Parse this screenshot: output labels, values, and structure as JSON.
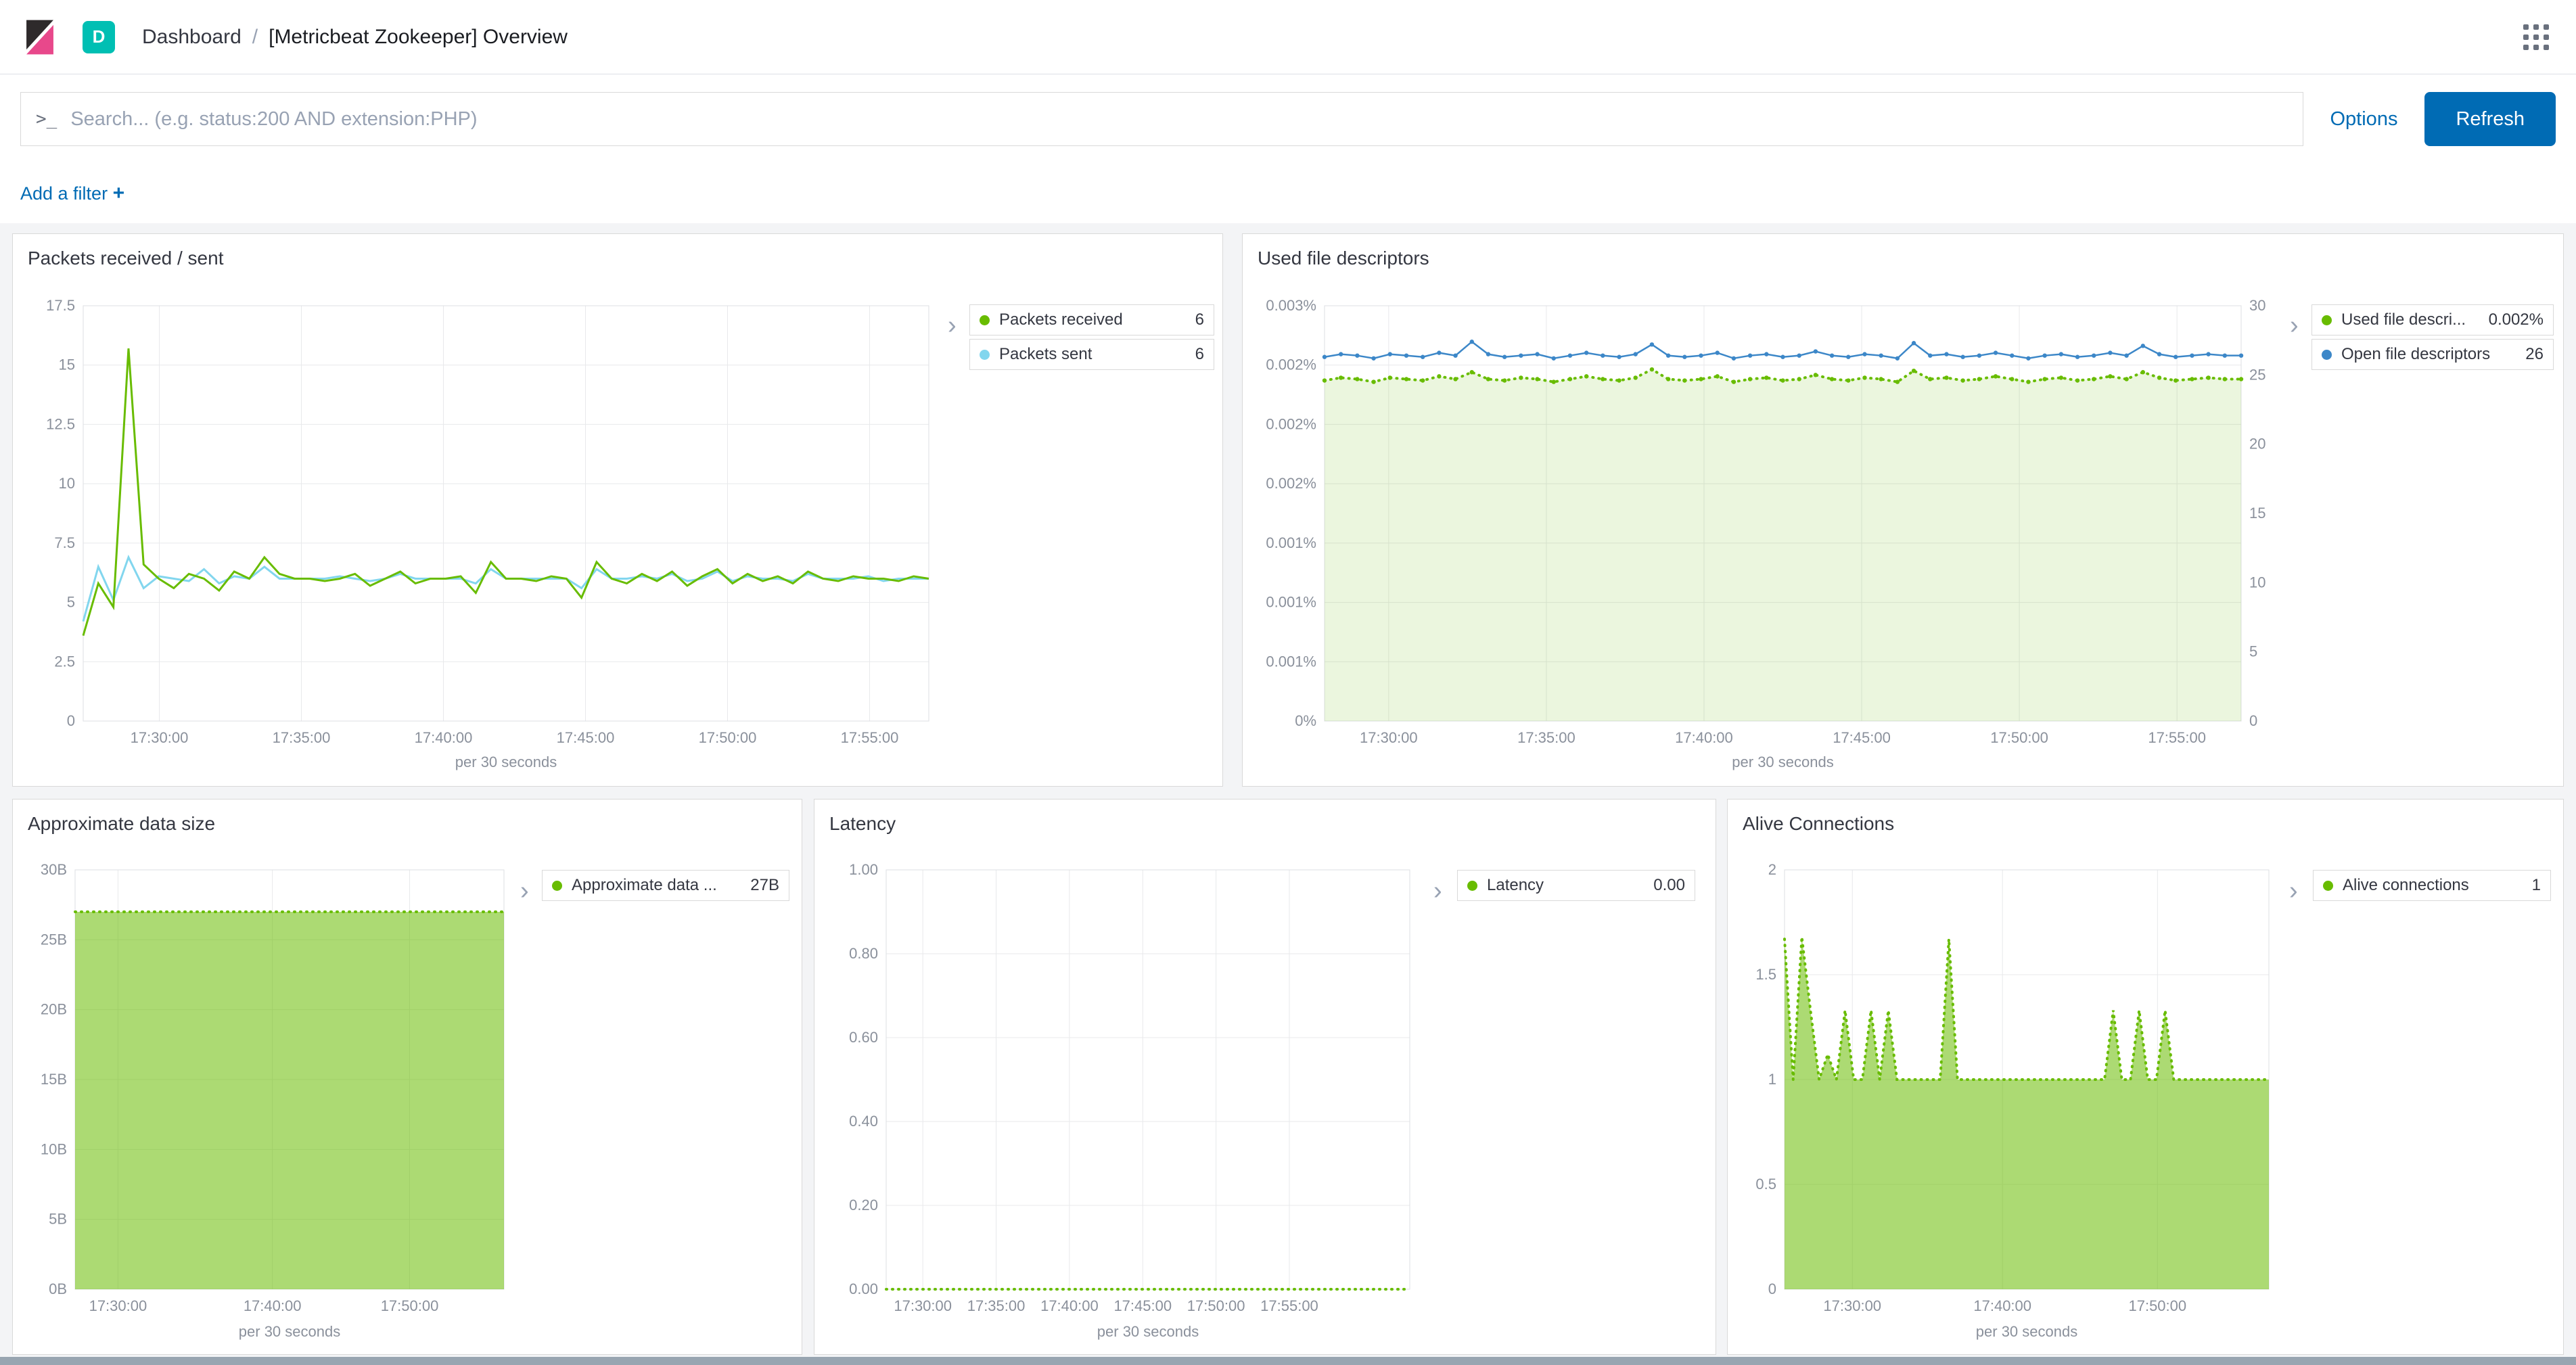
{
  "header": {
    "space_badge": "D",
    "breadcrumb": {
      "section": "Dashboard",
      "separator": "/",
      "page": "[Metricbeat Zookeeper] Overview"
    }
  },
  "search": {
    "prompt": ">_",
    "placeholder": "Search... (e.g. status:200 AND extension:PHP)",
    "options_label": "Options",
    "refresh_label": "Refresh"
  },
  "filter_bar": {
    "label": "Add a filter",
    "plus": "+"
  },
  "ui": {
    "legend_toggle": "›"
  },
  "colors": {
    "primary_blue": "#006BB4",
    "space_teal": "#00BFB3",
    "series_green": "#68BC00",
    "series_cyan": "#82D6EE",
    "series_blue": "#3C87C8"
  },
  "panels": [
    {
      "title": "Packets received / sent",
      "legend": [
        {
          "label": "Packets received",
          "value": "6",
          "color": "#68BC00"
        },
        {
          "label": "Packets sent",
          "value": "6",
          "color": "#82D6EE"
        }
      ],
      "chart": {
        "yticks": [
          "0",
          "2.5",
          "5",
          "7.5",
          "10",
          "12.5",
          "15",
          "17.5"
        ],
        "xticks": {
          "labels": [
            "17:30:00",
            "17:35:00",
            "17:40:00",
            "17:45:00",
            "17:50:00",
            "17:55:00"
          ],
          "fracs": [
            0.09,
            0.258,
            0.426,
            0.594,
            0.762,
            0.93
          ]
        },
        "xlabel": "per 30 seconds",
        "series": [
          {
            "name": "Packets received",
            "color": "#68BC00",
            "type": "line",
            "width": 3,
            "ylim": [
              0,
              17.5
            ],
            "values": [
              3.6,
              5.8,
              4.8,
              15.7,
              6.6,
              6,
              5.6,
              6.2,
              6,
              5.5,
              6.3,
              6,
              6.9,
              6.2,
              6,
              6,
              5.9,
              6,
              6.2,
              5.7,
              6,
              6.3,
              5.8,
              6,
              6,
              6.1,
              5.4,
              6.7,
              6,
              6,
              5.9,
              6.1,
              6,
              5.2,
              6.7,
              6,
              5.8,
              6.2,
              5.9,
              6.3,
              5.7,
              6.1,
              6.4,
              5.8,
              6.2,
              5.9,
              6.1,
              5.8,
              6.3,
              6,
              5.9,
              6.1,
              6,
              6,
              5.9,
              6.1,
              6
            ]
          },
          {
            "name": "Packets sent",
            "color": "#82D6EE",
            "type": "line",
            "width": 3,
            "ylim": [
              0,
              17.5
            ],
            "values": [
              4.2,
              6.5,
              5.1,
              6.9,
              5.6,
              6.1,
              6,
              5.9,
              6.4,
              5.8,
              6.1,
              6,
              6.5,
              6,
              6,
              6,
              6,
              6.1,
              6,
              5.9,
              6,
              6.2,
              6,
              6,
              6,
              6,
              5.8,
              6.4,
              6,
              6,
              6,
              6,
              6,
              5.6,
              6.4,
              6,
              6,
              6.1,
              6,
              6.2,
              5.9,
              6,
              6.3,
              5.9,
              6.1,
              6,
              6,
              5.9,
              6.2,
              6,
              6,
              6,
              6.1,
              5.9,
              6,
              6,
              6
            ]
          }
        ]
      }
    },
    {
      "title": "Used file descriptors",
      "legend": [
        {
          "label": "Used file descri...",
          "value": "0.002%",
          "color": "#68BC00"
        },
        {
          "label": "Open file descriptors",
          "value": "26",
          "color": "#3C87C8"
        }
      ],
      "chart": {
        "yticks": [
          "0%",
          "0.001%",
          "0.001%",
          "0.001%",
          "0.002%",
          "0.002%",
          "0.002%",
          "0.003%"
        ],
        "yticks_right": [
          "0",
          "5",
          "10",
          "15",
          "20",
          "25",
          "30"
        ],
        "xticks": {
          "labels": [
            "17:30:00",
            "17:35:00",
            "17:40:00",
            "17:45:00",
            "17:50:00",
            "17:55:00"
          ],
          "fracs": [
            0.07,
            0.242,
            0.414,
            0.586,
            0.758,
            0.93
          ]
        },
        "xlabel": "per 30 seconds",
        "series": [
          {
            "name": "Used file descriptors pct",
            "color": "#68BC00",
            "type": "area",
            "fill_opacity": 0.13,
            "dotted": true,
            "markers": true,
            "ylim": [
              0,
              0.003
            ],
            "values": [
              0.00246,
              0.00248,
              0.00247,
              0.00245,
              0.00248,
              0.00247,
              0.00246,
              0.00249,
              0.00247,
              0.00252,
              0.00247,
              0.00246,
              0.00248,
              0.00247,
              0.00245,
              0.00247,
              0.00249,
              0.00247,
              0.00246,
              0.00248,
              0.00254,
              0.00247,
              0.00246,
              0.00247,
              0.00249,
              0.00245,
              0.00247,
              0.00248,
              0.00246,
              0.00247,
              0.0025,
              0.00247,
              0.00246,
              0.00248,
              0.00247,
              0.00245,
              0.00253,
              0.00247,
              0.00248,
              0.00246,
              0.00247,
              0.00249,
              0.00247,
              0.00245,
              0.00247,
              0.00248,
              0.00246,
              0.00247,
              0.00249,
              0.00247,
              0.00252,
              0.00248,
              0.00246,
              0.00247,
              0.00248,
              0.00247,
              0.00247
            ]
          },
          {
            "name": "Open file descriptors",
            "color": "#3C87C8",
            "type": "line",
            "width": 2.5,
            "markers": true,
            "ylim": [
              0,
              30
            ],
            "values": [
              26.3,
              26.5,
              26.4,
              26.2,
              26.5,
              26.4,
              26.3,
              26.6,
              26.4,
              27.4,
              26.5,
              26.3,
              26.4,
              26.5,
              26.2,
              26.4,
              26.6,
              26.4,
              26.3,
              26.5,
              27.2,
              26.4,
              26.3,
              26.4,
              26.6,
              26.2,
              26.4,
              26.5,
              26.3,
              26.4,
              26.7,
              26.4,
              26.3,
              26.5,
              26.4,
              26.2,
              27.3,
              26.4,
              26.5,
              26.3,
              26.4,
              26.6,
              26.4,
              26.2,
              26.4,
              26.5,
              26.3,
              26.4,
              26.6,
              26.4,
              27.1,
              26.5,
              26.3,
              26.4,
              26.5,
              26.4,
              26.4
            ]
          }
        ]
      }
    },
    {
      "title": "Approximate data size",
      "legend": [
        {
          "label": "Approximate data ...",
          "value": "27B",
          "color": "#68BC00"
        }
      ],
      "chart": {
        "yticks": [
          "0B",
          "5B",
          "10B",
          "15B",
          "20B",
          "25B",
          "30B"
        ],
        "xticks": {
          "labels": [
            "17:30:00",
            "17:40:00",
            "17:50:00"
          ],
          "fracs": [
            0.1,
            0.46,
            0.78
          ]
        },
        "xlabel": "per 30 seconds",
        "series": [
          {
            "name": "Approximate data size",
            "color": "#68BC00",
            "type": "area",
            "fill_opacity": 0.55,
            "dotted": true,
            "ylim": [
              0,
              30
            ],
            "values": [
              27,
              27,
              27,
              27,
              27,
              27,
              27,
              27,
              27,
              27,
              27,
              27,
              27,
              27,
              27,
              27,
              27,
              27,
              27,
              27,
              27,
              27,
              27,
              27,
              27,
              27,
              27,
              27,
              27,
              27,
              27,
              27,
              27,
              27,
              27,
              27,
              27,
              27,
              27,
              27,
              27
            ]
          }
        ]
      }
    },
    {
      "title": "Latency",
      "legend": [
        {
          "label": "Latency",
          "value": "0.00",
          "color": "#68BC00"
        }
      ],
      "chart": {
        "yticks": [
          "0.00",
          "0.20",
          "0.40",
          "0.60",
          "0.80",
          "1.00"
        ],
        "xticks": {
          "labels": [
            "17:30:00",
            "17:35:00",
            "17:40:00",
            "17:45:00",
            "17:50:00",
            "17:55:00"
          ],
          "fracs": [
            0.07,
            0.21,
            0.35,
            0.49,
            0.63,
            0.77
          ]
        },
        "xlabel": "per 30 seconds",
        "series": [
          {
            "name": "Latency",
            "color": "#68BC00",
            "type": "line",
            "dotted": true,
            "ylim": [
              0,
              1
            ],
            "values": [
              0,
              0,
              0,
              0,
              0,
              0,
              0,
              0,
              0,
              0,
              0,
              0
            ]
          }
        ]
      }
    },
    {
      "title": "Alive Connections",
      "legend": [
        {
          "label": "Alive connections",
          "value": "1",
          "color": "#68BC00"
        }
      ],
      "chart": {
        "yticks": [
          "0",
          "0.5",
          "1",
          "1.5",
          "2"
        ],
        "xticks": {
          "labels": [
            "17:30:00",
            "17:40:00",
            "17:50:00"
          ],
          "fracs": [
            0.14,
            0.45,
            0.77
          ]
        },
        "xlabel": "per 30 seconds",
        "series": [
          {
            "name": "Alive connections",
            "color": "#68BC00",
            "type": "area",
            "fill_opacity": 0.55,
            "dotted": true,
            "ylim": [
              0,
              2
            ],
            "values": [
              1.67,
              1,
              1.68,
              1.33,
              1,
              1.12,
              1,
              1.33,
              1,
              1,
              1.33,
              1,
              1.33,
              1,
              1,
              1,
              1,
              1,
              1,
              1.67,
              1,
              1,
              1,
              1,
              1,
              1,
              1,
              1,
              1,
              1,
              1,
              1,
              1,
              1,
              1,
              1,
              1,
              1,
              1.33,
              1,
              1,
              1.33,
              1,
              1,
              1.33,
              1,
              1,
              1,
              1,
              1,
              1,
              1,
              1,
              1,
              1,
              1,
              1
            ]
          }
        ]
      }
    }
  ]
}
